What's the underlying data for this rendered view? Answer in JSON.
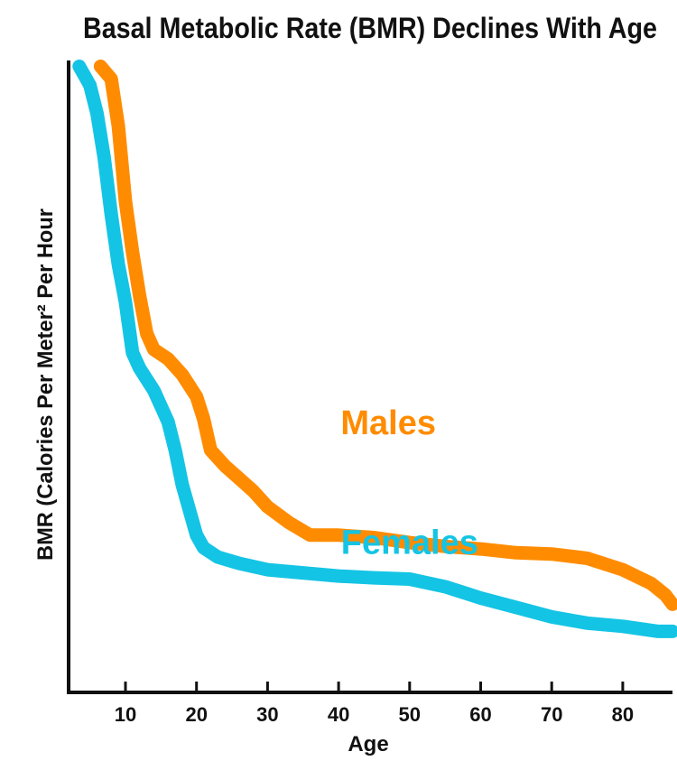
{
  "chart_data": {
    "type": "line",
    "title": "Basal Metabolic Rate (BMR) Declines With Age",
    "xlabel": "Age",
    "ylabel": "BMR (Calories Per Meter² Per Hour",
    "xlim": [
      2,
      87
    ],
    "ylim": [
      0,
      100
    ],
    "x_ticks": [
      10,
      20,
      30,
      40,
      50,
      60,
      70,
      80
    ],
    "y_tick_labels": "none",
    "grid": false,
    "legend": "inline labels",
    "series": [
      {
        "name": "Males",
        "color": "#FF8C00",
        "label_position": [
          47,
          41
        ],
        "points": [
          [
            6.5,
            99.5
          ],
          [
            8,
            97.5
          ],
          [
            9,
            90
          ],
          [
            10,
            78
          ],
          [
            11,
            70
          ],
          [
            12,
            63
          ],
          [
            13,
            57
          ],
          [
            14,
            54.5
          ],
          [
            16,
            53
          ],
          [
            18,
            50.5
          ],
          [
            20,
            47
          ],
          [
            21,
            43.5
          ],
          [
            22,
            38.5
          ],
          [
            24,
            36
          ],
          [
            26,
            34
          ],
          [
            28,
            32
          ],
          [
            30,
            29.5
          ],
          [
            33,
            27
          ],
          [
            36,
            25
          ],
          [
            40,
            25
          ],
          [
            45,
            24.6
          ],
          [
            50,
            23.8
          ],
          [
            55,
            23.2
          ],
          [
            60,
            22.8
          ],
          [
            65,
            22.2
          ],
          [
            70,
            22
          ],
          [
            75,
            21.3
          ],
          [
            80,
            19.5
          ],
          [
            84,
            17.3
          ],
          [
            86,
            15.5
          ],
          [
            87,
            14
          ]
        ]
      },
      {
        "name": "Females",
        "color": "#14C4E4",
        "label_position": [
          50,
          22
        ],
        "points": [
          [
            3.5,
            99.5
          ],
          [
            5,
            96.5
          ],
          [
            6,
            92
          ],
          [
            7,
            85
          ],
          [
            8,
            76
          ],
          [
            9,
            68
          ],
          [
            10,
            62
          ],
          [
            11,
            54
          ],
          [
            12,
            51.5
          ],
          [
            14,
            48
          ],
          [
            16,
            43
          ],
          [
            17,
            38.5
          ],
          [
            18,
            33
          ],
          [
            19,
            29
          ],
          [
            20,
            25
          ],
          [
            21,
            23
          ],
          [
            23,
            21.5
          ],
          [
            26,
            20.5
          ],
          [
            30,
            19.5
          ],
          [
            35,
            19
          ],
          [
            40,
            18.5
          ],
          [
            45,
            18.2
          ],
          [
            50,
            18
          ],
          [
            55,
            16.8
          ],
          [
            60,
            15
          ],
          [
            65,
            13.5
          ],
          [
            70,
            12
          ],
          [
            75,
            11
          ],
          [
            80,
            10.5
          ],
          [
            85,
            9.7
          ],
          [
            87,
            9.7
          ]
        ]
      }
    ]
  }
}
